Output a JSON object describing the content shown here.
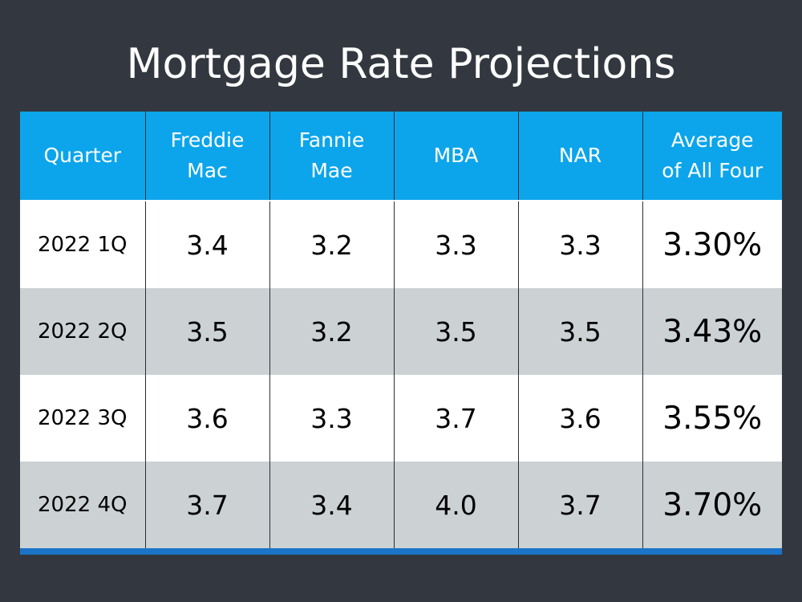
{
  "title": "Mortgage Rate Projections",
  "colors": {
    "background": "#333840",
    "header": "#0ca5eb",
    "row_alt": "#ccd1d4",
    "bottom_bar": "#1b74c8"
  },
  "table": {
    "headers": {
      "quarter": "Quarter",
      "freddie_line1": "Freddie",
      "freddie_line2": "Mac",
      "fannie_line1": "Fannie",
      "fannie_line2": "Mae",
      "mba": "MBA",
      "nar": "NAR",
      "avg_line1": "Average",
      "avg_line2": "of All Four"
    },
    "rows": [
      {
        "quarter": "2022 1Q",
        "freddie": "3.4",
        "fannie": "3.2",
        "mba": "3.3",
        "nar": "3.3",
        "avg": "3.30%"
      },
      {
        "quarter": "2022 2Q",
        "freddie": "3.5",
        "fannie": "3.2",
        "mba": "3.5",
        "nar": "3.5",
        "avg": "3.43%"
      },
      {
        "quarter": "2022 3Q",
        "freddie": "3.6",
        "fannie": "3.3",
        "mba": "3.7",
        "nar": "3.6",
        "avg": "3.55%"
      },
      {
        "quarter": "2022 4Q",
        "freddie": "3.7",
        "fannie": "3.4",
        "mba": "4.0",
        "nar": "3.7",
        "avg": "3.70%"
      }
    ]
  }
}
